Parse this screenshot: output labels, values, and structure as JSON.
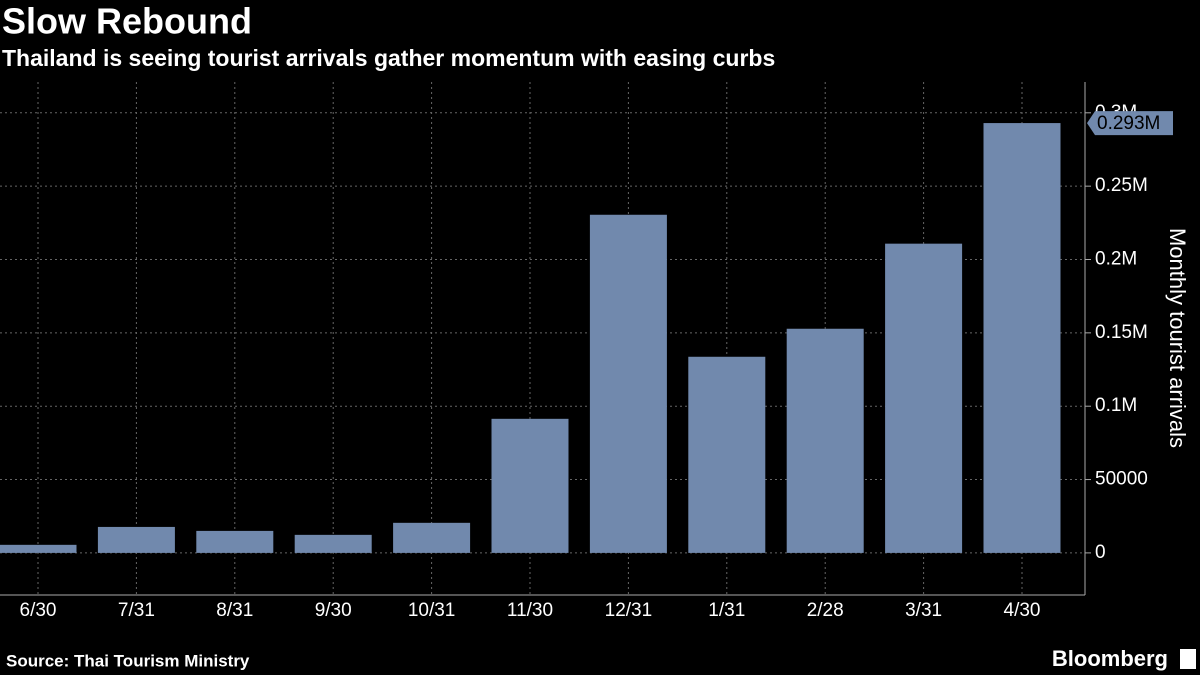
{
  "chart_data": {
    "type": "bar",
    "title": "Slow Rebound",
    "subtitle": "Thailand is seeing tourist arrivals gather momentum with easing curbs",
    "ylabel": "Monthly tourist arrivals",
    "categories": [
      "6/30",
      "7/31",
      "8/31",
      "9/30",
      "10/31",
      "11/30",
      "12/31",
      "1/31",
      "2/28",
      "3/31",
      "4/30"
    ],
    "values": [
      5500,
      17700,
      15000,
      12300,
      20500,
      91400,
      230500,
      133700,
      152800,
      210800,
      293000
    ],
    "value_labels": [
      null,
      null,
      null,
      null,
      null,
      null,
      null,
      null,
      null,
      null,
      "0.293M"
    ],
    "color": "#7189ad",
    "ylim": [
      -28700,
      321000
    ],
    "yticks": [
      0,
      50000,
      {
        "value": 100000,
        "label": "0.1M"
      },
      {
        "value": 150000,
        "label": "0.15M"
      },
      {
        "value": 200000,
        "label": "0.2M"
      },
      {
        "value": 250000,
        "label": "0.25M"
      },
      {
        "value": 300000,
        "label": "0.3M"
      }
    ],
    "grid": true,
    "source": "Source: Thai Tourism Ministry",
    "brand": "Bloomberg"
  }
}
